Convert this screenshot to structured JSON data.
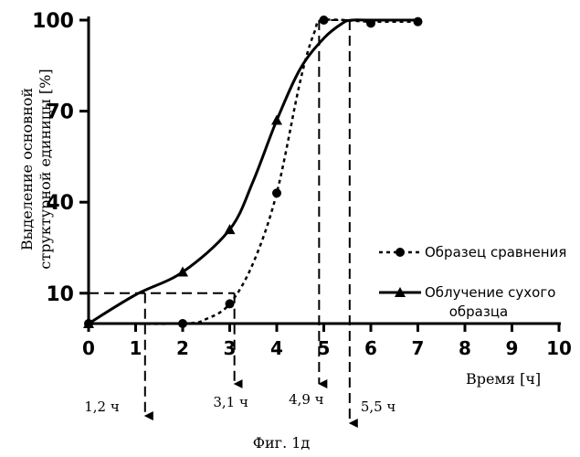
{
  "chart_data": {
    "type": "line",
    "title": "",
    "caption": "Фиг. 1д",
    "xlabel": "Время [ч]",
    "ylabel": [
      "Выделение основной",
      "структурной единицы [%]"
    ],
    "xlim": [
      0,
      10
    ],
    "ylim": [
      0,
      100
    ],
    "x_ticks": [
      "0",
      "1",
      "2",
      "3",
      "4",
      "5",
      "6",
      "7",
      "8",
      "9",
      "10"
    ],
    "y_ticks": [
      "10",
      "40",
      "70",
      "100"
    ],
    "grid": false,
    "legend_position": "right",
    "series": [
      {
        "name": "Образец сравнения",
        "style": "dotted",
        "marker": "circle",
        "points": [
          [
            0,
            0
          ],
          [
            2,
            0
          ],
          [
            3,
            6.5
          ],
          [
            4,
            43
          ],
          [
            5,
            100
          ],
          [
            6,
            99
          ],
          [
            7,
            99.5
          ]
        ],
        "curve": [
          [
            0,
            0
          ],
          [
            2,
            0
          ],
          [
            2.5,
            1.5
          ],
          [
            3,
            6.5
          ],
          [
            3.5,
            20
          ],
          [
            4,
            43
          ],
          [
            4.5,
            80
          ],
          [
            4.8,
            96
          ],
          [
            5,
            100
          ],
          [
            6,
            99.5
          ],
          [
            7,
            99.5
          ]
        ]
      },
      {
        "name": "Облучение сухого образца",
        "style": "solid",
        "marker": "triangle",
        "points": [
          [
            0,
            0
          ],
          [
            2,
            17
          ],
          [
            3,
            31
          ],
          [
            4,
            67
          ]
        ],
        "curve": [
          [
            0,
            0
          ],
          [
            1,
            9.5
          ],
          [
            2,
            17
          ],
          [
            3,
            31
          ],
          [
            3.5,
            47
          ],
          [
            4,
            67
          ],
          [
            4.5,
            84
          ],
          [
            5,
            94
          ],
          [
            5.4,
            99
          ],
          [
            5.6,
            100
          ],
          [
            6,
            100
          ],
          [
            7,
            100
          ]
        ]
      }
    ],
    "annotations": [
      {
        "label": "1,2 ч",
        "x": 1.2,
        "y": 10
      },
      {
        "label": "3,1 ч",
        "x": 3.1,
        "y": 10
      },
      {
        "label": "4,9 ч",
        "x": 4.9,
        "y": 100
      },
      {
        "label": "5,5 ч",
        "x": 5.55,
        "y": 100
      }
    ]
  }
}
